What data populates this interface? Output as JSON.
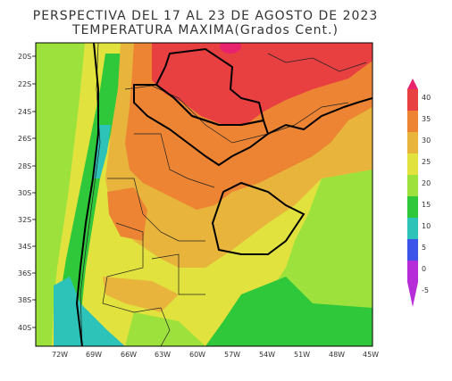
{
  "title_line1": "PERSPECTIVA DEL 17 AL 23 DE AGOSTO DE 2023",
  "title_line2": "TEMPERATURA MAXIMA(Grados Cent.)",
  "lat_labels": [
    "20S",
    "22S",
    "24S",
    "26S",
    "28S",
    "30S",
    "32S",
    "34S",
    "36S",
    "38S",
    "40S"
  ],
  "lon_labels": [
    "72W",
    "69W",
    "66W",
    "63W",
    "60W",
    "57W",
    "54W",
    "51W",
    "48W",
    "45W"
  ],
  "legend": {
    "levels": [
      "40",
      "35",
      "30",
      "25",
      "20",
      "15",
      "10",
      "5",
      "0",
      "-5"
    ],
    "colors": [
      "#e8226c",
      "#e84040",
      "#ec8433",
      "#e8b43c",
      "#e2e23e",
      "#9de23c",
      "#2fc83a",
      "#2dc3b8",
      "#3b53e8",
      "#b62cd8"
    ]
  },
  "fill_colors": {
    "lt_minus5": "#b62cd8",
    "c0_5": "#3b53e8",
    "c5_10": "#2dc3b8",
    "c10_15": "#2fc83a",
    "c15_20": "#9de23c",
    "c20_25": "#e2e23e",
    "c25_30": "#e8b43c",
    "c30_35": "#ec8433",
    "c35_40": "#e84040",
    "gt40": "#e8226c"
  }
}
